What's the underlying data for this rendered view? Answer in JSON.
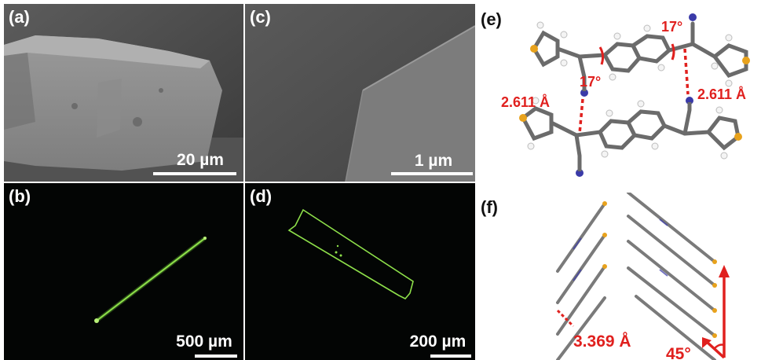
{
  "panels": [
    {
      "label": "(a)",
      "scale_label": "20 µm"
    },
    {
      "label": "(b)",
      "scale_label": "500 µm"
    },
    {
      "label": "(c)",
      "scale_label": "1 µm"
    },
    {
      "label": "(d)",
      "scale_label": "200 µm"
    },
    {
      "label": "(e)",
      "annotations": [
        "17°",
        "17°",
        "2.611 Å",
        "2.611 Å"
      ]
    },
    {
      "label": "(f)",
      "annotations": [
        "3.369 Å",
        "45°"
      ]
    }
  ],
  "colors": {
    "annotation": "#e0201e",
    "fluorescence": "#8ee04a",
    "carbon": "#6b6b6b",
    "sulfur": "#e8a21c",
    "nitrogen": "#3a3aa8",
    "hydrogen": "#f4f4f4"
  }
}
